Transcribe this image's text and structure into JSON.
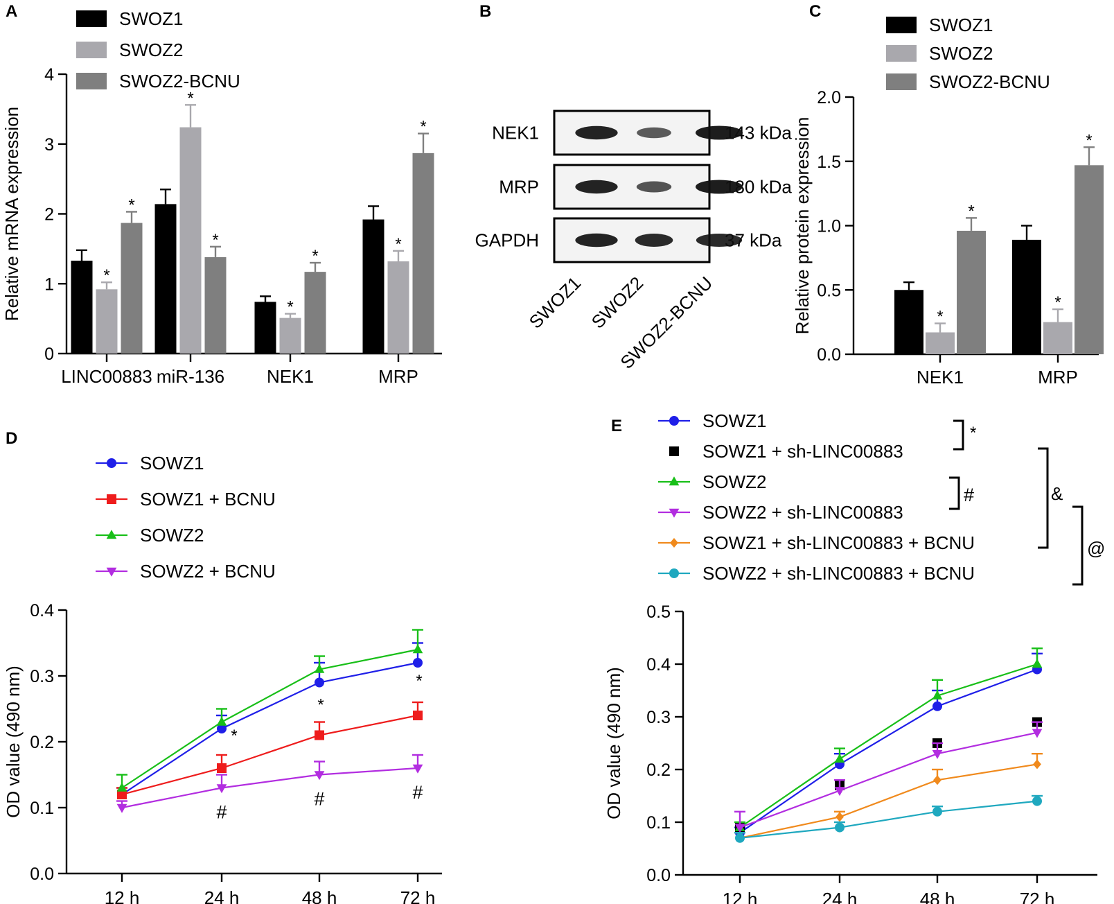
{
  "colors": {
    "SWOZ1": "#000000",
    "SWOZ2": "#a9a8ad",
    "SWOZ2-BCNU": "#7f7f7f",
    "SOWZ1": "#1f1fe8",
    "SOWZ1 + BCNU": "#ee1c1c",
    "SOWZ2": "#18bf18",
    "SOWZ2 + BCNU": "#b22de0",
    "SOWZ2 + sh-LINC00883": "#b22de0",
    "SOWZ1 + sh-LINC00883 + BCNU": "#f08a1d",
    "SOWZ2 + sh-LINC00883 + BCNU": "#1fa8bf"
  },
  "blot": {
    "panel_letter": "B",
    "rows": [
      {
        "name": "NEK1",
        "size": "143 kDa"
      },
      {
        "name": "MRP",
        "size": "180 kDa"
      },
      {
        "name": "GAPDH",
        "size": "37 kDa"
      }
    ],
    "lanes": [
      "SWOZ1",
      "SWOZ2",
      "SWOZ2-BCNU"
    ]
  },
  "chart_data": [
    {
      "panel_letter": "A",
      "type": "bar",
      "ylabel": "Relative mRNA expression",
      "ylim": [
        0,
        4
      ],
      "yticks": [
        "0",
        "1",
        "2",
        "3",
        "4"
      ],
      "categories": [
        "LINC00883",
        "miR-136",
        "NEK1",
        "MRP"
      ],
      "series": [
        {
          "name": "SWOZ1",
          "values": [
            1.33,
            2.14,
            0.74,
            1.92
          ],
          "errors": [
            0.15,
            0.21,
            0.08,
            0.19
          ],
          "marks": [
            "",
            "",
            "",
            ""
          ]
        },
        {
          "name": "SWOZ2",
          "values": [
            0.92,
            3.24,
            0.51,
            1.32
          ],
          "errors": [
            0.1,
            0.32,
            0.06,
            0.15
          ],
          "marks": [
            "*",
            "*",
            "*",
            "*"
          ]
        },
        {
          "name": "SWOZ2-BCNU",
          "values": [
            1.87,
            1.38,
            1.17,
            2.87
          ],
          "errors": [
            0.16,
            0.15,
            0.13,
            0.28
          ],
          "marks": [
            "*",
            "*",
            "*",
            "*"
          ]
        }
      ],
      "legend": [
        "SWOZ1",
        "SWOZ2",
        "SWOZ2-BCNU"
      ]
    },
    {
      "panel_letter": "C",
      "type": "bar",
      "ylabel": "Relative protein expression",
      "ylim": [
        0,
        2
      ],
      "yticks": [
        "0.0",
        "0.5",
        "1.0",
        "1.5",
        "2.0"
      ],
      "categories": [
        "NEK1",
        "MRP"
      ],
      "series": [
        {
          "name": "SWOZ1",
          "values": [
            0.5,
            0.89
          ],
          "errors": [
            0.06,
            0.11
          ],
          "marks": [
            "",
            ""
          ]
        },
        {
          "name": "SWOZ2",
          "values": [
            0.17,
            0.25
          ],
          "errors": [
            0.07,
            0.1
          ],
          "marks": [
            "*",
            "*"
          ]
        },
        {
          "name": "SWOZ2-BCNU",
          "values": [
            0.96,
            1.47
          ],
          "errors": [
            0.1,
            0.14
          ],
          "marks": [
            "*",
            "*"
          ]
        }
      ],
      "legend": [
        "SWOZ1",
        "SWOZ2",
        "SWOZ2-BCNU"
      ]
    },
    {
      "panel_letter": "D",
      "type": "line",
      "ylabel": "OD value (490 nm)",
      "ylim": [
        0,
        0.4
      ],
      "yticks": [
        "0.0",
        "0.1",
        "0.2",
        "0.3",
        "0.4"
      ],
      "x": [
        "12 h",
        "24 h",
        "48 h",
        "72 h"
      ],
      "series": [
        {
          "name": "SOWZ1",
          "marker": "circle",
          "values": [
            0.12,
            0.22,
            0.29,
            0.32
          ],
          "errors": [
            0.01,
            0.02,
            0.03,
            0.03
          ],
          "marks": [
            "",
            "*",
            "*",
            "*"
          ]
        },
        {
          "name": "SOWZ1 + BCNU",
          "marker": "square",
          "values": [
            0.12,
            0.16,
            0.21,
            0.24
          ],
          "errors": [
            0.01,
            0.02,
            0.02,
            0.02
          ],
          "marks": [
            "",
            "",
            "",
            ""
          ]
        },
        {
          "name": "SOWZ2",
          "marker": "triangle-up",
          "values": [
            0.13,
            0.23,
            0.31,
            0.34
          ],
          "errors": [
            0.02,
            0.02,
            0.02,
            0.03
          ],
          "marks": [
            "",
            "",
            "",
            ""
          ]
        },
        {
          "name": "SOWZ2 + BCNU",
          "marker": "triangle-down",
          "values": [
            0.1,
            0.13,
            0.15,
            0.16
          ],
          "errors": [
            0.01,
            0.02,
            0.02,
            0.02
          ],
          "marks": [
            "",
            "#",
            "#",
            "#"
          ]
        }
      ]
    },
    {
      "panel_letter": "E",
      "type": "line",
      "ylabel": "OD value (490 nm)",
      "ylim": [
        0,
        0.5
      ],
      "yticks": [
        "0.0",
        "0.1",
        "0.2",
        "0.3",
        "0.4",
        "0.5"
      ],
      "x": [
        "12 h",
        "24 h",
        "48 h",
        "72 h"
      ],
      "series": [
        {
          "name": "SOWZ1",
          "marker": "circle",
          "values": [
            0.08,
            0.21,
            0.32,
            0.39
          ],
          "errors": [
            0.01,
            0.02,
            0.03,
            0.03
          ]
        },
        {
          "name": "SOWZ1 + sh-LINC00883",
          "marker": "square",
          "values": [
            0.09,
            0.17,
            0.25,
            0.29
          ],
          "errors": [
            0.01,
            0.02,
            0.02,
            0.03
          ]
        },
        {
          "name": "SOWZ2",
          "marker": "triangle-up",
          "values": [
            0.09,
            0.22,
            0.34,
            0.4
          ],
          "errors": [
            0.01,
            0.02,
            0.03,
            0.03
          ]
        },
        {
          "name": "SOWZ2 + sh-LINC00883",
          "marker": "triangle-down",
          "values": [
            0.09,
            0.16,
            0.23,
            0.27
          ],
          "errors": [
            0.03,
            0.02,
            0.02,
            0.02
          ]
        },
        {
          "name": "SOWZ1 + sh-LINC00883 + BCNU",
          "marker": "diamond",
          "values": [
            0.07,
            0.11,
            0.18,
            0.21
          ],
          "errors": [
            0.01,
            0.01,
            0.02,
            0.02
          ]
        },
        {
          "name": "SOWZ2 + sh-LINC00883 + BCNU",
          "marker": "circle",
          "values": [
            0.07,
            0.09,
            0.12,
            0.14
          ],
          "errors": [
            0.01,
            0.01,
            0.01,
            0.01
          ]
        }
      ],
      "brackets": [
        "*",
        "#",
        "&",
        "@"
      ]
    }
  ]
}
